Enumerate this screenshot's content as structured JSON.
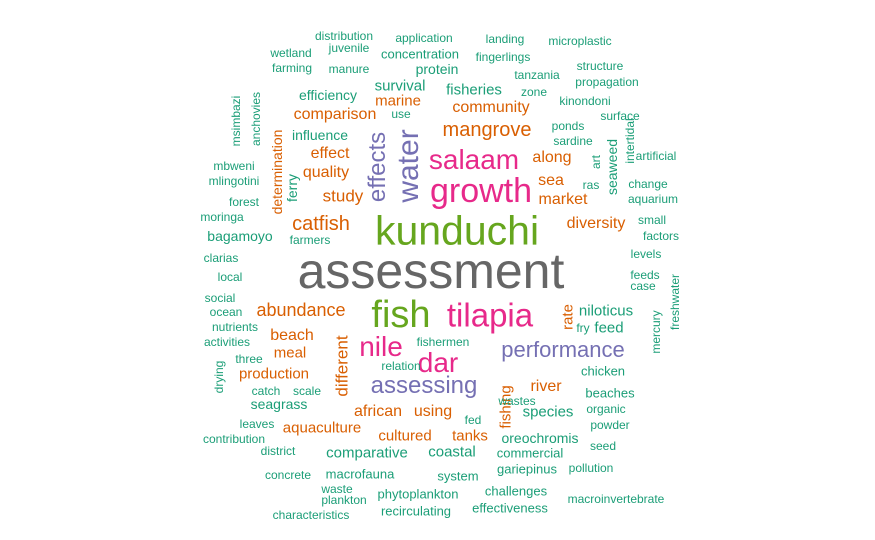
{
  "colors": {
    "teal": "#1b9e77",
    "orange": "#d95f02",
    "purple": "#7570b3",
    "magenta": "#e7298a",
    "green": "#66a61e",
    "gray": "#666666"
  },
  "words": [
    "assessment",
    "kunduchi",
    "growth",
    "fish",
    "tilapia",
    "salaam",
    "water",
    "nile",
    "dar",
    "effects",
    "performance",
    "assessing",
    "mangrove",
    "catfish",
    "abundance",
    "different",
    "study",
    "market",
    "quality",
    "diversity",
    "effect",
    "along",
    "sea",
    "community",
    "comparison",
    "survival",
    "fisheries",
    "marine",
    "river",
    "african",
    "using",
    "beach",
    "meal",
    "production",
    "aquaculture",
    "cultured",
    "tanks",
    "species",
    "fishing",
    "rate",
    "niloticus",
    "feed",
    "seagrass",
    "coastal",
    "comparative",
    "protein",
    "efficiency",
    "influence",
    "determination",
    "ferry",
    "bagamoyo",
    "seaweed",
    "oreochromis",
    "gariepinus",
    "system",
    "macrofauna",
    "phytoplankton",
    "recirculating",
    "effectiveness",
    "challenges",
    "commercial",
    "pollution",
    "macroinvertebrate",
    "plankton",
    "waste",
    "characteristics",
    "concrete",
    "district",
    "contribution",
    "leaves",
    "catch",
    "scale",
    "three",
    "drying",
    "activities",
    "nutrients",
    "ocean",
    "social",
    "local",
    "clarias",
    "moringa",
    "forest",
    "mlingotini",
    "mbweni",
    "msimbazi",
    "anchovies",
    "farming",
    "wetland",
    "manure",
    "juvenile",
    "distribution",
    "application",
    "concentration",
    "landing",
    "fingerlings",
    "microplastic",
    "structure",
    "tanzania",
    "propagation",
    "zone",
    "kinondoni",
    "use",
    "ponds",
    "sardine",
    "surface",
    "intertidal",
    "art",
    "ras",
    "change",
    "artificial",
    "aquarium",
    "small",
    "factors",
    "levels",
    "feeds",
    "case",
    "freshwater",
    "mercury",
    "fry",
    "chicken",
    "beaches",
    "organic",
    "powder",
    "seed",
    "wastes",
    "fed",
    "relation",
    "fishermen",
    "farmers"
  ]
}
